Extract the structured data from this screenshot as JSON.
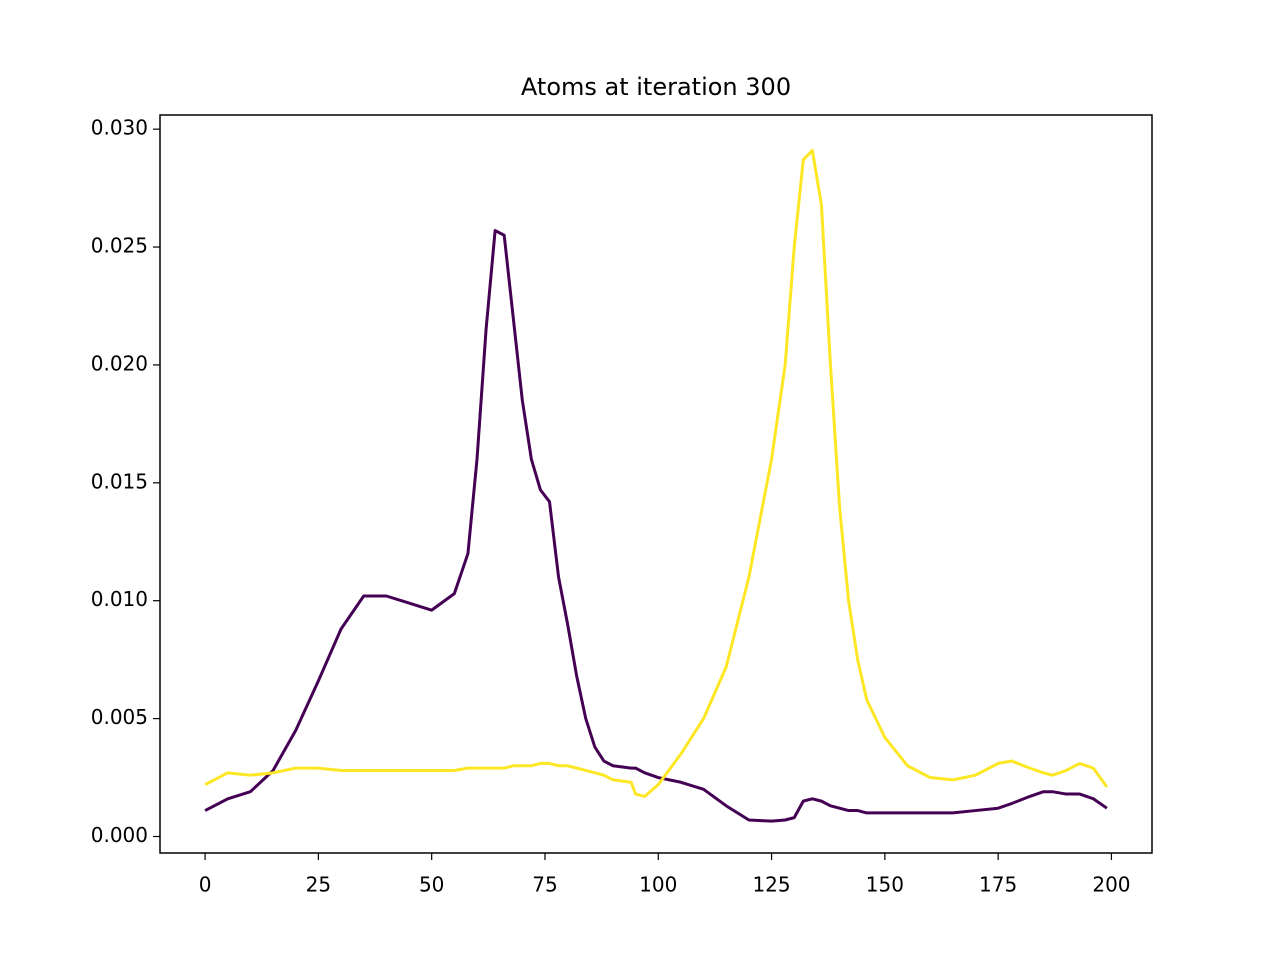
{
  "chart_data": {
    "type": "line",
    "title": "Atoms at iteration 300",
    "x": [
      0,
      5,
      10,
      15,
      20,
      25,
      30,
      35,
      40,
      45,
      50,
      55,
      58,
      60,
      62,
      64,
      66,
      68,
      70,
      72,
      74,
      76,
      78,
      80,
      82,
      84,
      86,
      88,
      90,
      94,
      95,
      97,
      100,
      105,
      110,
      115,
      120,
      125,
      128,
      130,
      132,
      134,
      136,
      138,
      140,
      142,
      144,
      146,
      150,
      155,
      160,
      165,
      170,
      175,
      178,
      182,
      185,
      187,
      190,
      193,
      196,
      199
    ],
    "series": [
      {
        "color": "#440154",
        "values": [
          0.0011,
          0.0016,
          0.0019,
          0.0028,
          0.0045,
          0.0066,
          0.0088,
          0.0102,
          0.0102,
          0.0099,
          0.0096,
          0.0103,
          0.012,
          0.016,
          0.0215,
          0.0257,
          0.0255,
          0.022,
          0.0185,
          0.016,
          0.0147,
          0.0142,
          0.011,
          0.009,
          0.0068,
          0.005,
          0.0038,
          0.0032,
          0.003,
          0.0029,
          0.0029,
          0.0027,
          0.0025,
          0.0023,
          0.002,
          0.0013,
          0.0007,
          0.00065,
          0.0007,
          0.0008,
          0.0015,
          0.0016,
          0.0015,
          0.0013,
          0.0012,
          0.0011,
          0.0011,
          0.001,
          0.001,
          0.001,
          0.001,
          0.001,
          0.0011,
          0.0012,
          0.0014,
          0.0017,
          0.0019,
          0.0019,
          0.0018,
          0.0018,
          0.0016,
          0.0012
        ]
      },
      {
        "color": "#fde725",
        "values": [
          0.0022,
          0.0027,
          0.0026,
          0.0027,
          0.0029,
          0.0029,
          0.0028,
          0.0028,
          0.0028,
          0.0028,
          0.0028,
          0.0028,
          0.0029,
          0.0029,
          0.0029,
          0.0029,
          0.0029,
          0.003,
          0.003,
          0.003,
          0.0031,
          0.0031,
          0.003,
          0.003,
          0.0029,
          0.0028,
          0.0027,
          0.0026,
          0.0024,
          0.0023,
          0.0018,
          0.0017,
          0.0022,
          0.0035,
          0.005,
          0.0072,
          0.011,
          0.016,
          0.02,
          0.025,
          0.0287,
          0.0291,
          0.0268,
          0.02,
          0.014,
          0.01,
          0.0075,
          0.0058,
          0.0042,
          0.003,
          0.0025,
          0.0024,
          0.0026,
          0.0031,
          0.0032,
          0.0029,
          0.0027,
          0.0026,
          0.0028,
          0.0031,
          0.0029,
          0.0021
        ]
      }
    ],
    "xlim": [
      -9.95,
      208.95
    ],
    "xticks": [
      0,
      25,
      50,
      75,
      100,
      125,
      150,
      175,
      200
    ],
    "ylim": [
      -0.0007,
      0.0306
    ],
    "yticks": [
      {
        "value": 0,
        "label": "0.000"
      },
      {
        "value": 0.005,
        "label": "0.005"
      },
      {
        "value": 0.01,
        "label": "0.010"
      },
      {
        "value": 0.015,
        "label": "0.015"
      },
      {
        "value": 0.02,
        "label": "0.020"
      },
      {
        "value": 0.025,
        "label": "0.025"
      },
      {
        "value": 0.03,
        "label": "0.030"
      }
    ]
  }
}
